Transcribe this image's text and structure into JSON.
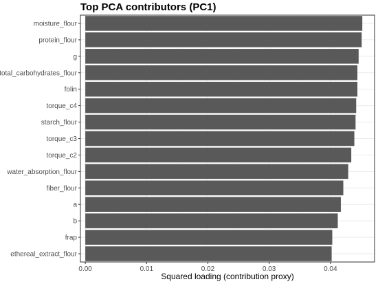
{
  "colors": {
    "bar": "#595959",
    "panel_border": "#333333",
    "grid": "#ebebeb",
    "background": "#ffffff"
  },
  "chart_data": {
    "type": "bar",
    "orientation": "horizontal",
    "title": "Top PCA contributors (PC1)",
    "xlabel": "Squared loading (contribution proxy)",
    "ylabel": "",
    "xlim": [
      -0.0008,
      0.0472
    ],
    "xticks": [
      0.0,
      0.01,
      0.02,
      0.03,
      0.04
    ],
    "xtick_labels": [
      "0.00",
      "0.01",
      "0.02",
      "0.03",
      "0.04"
    ],
    "grid": true,
    "categories": [
      "moisture_flour",
      "protein_flour",
      "g",
      "total_carbohydrates_flour",
      "folin",
      "torque_c4",
      "starch_flour",
      "torque_c3",
      "torque_c2",
      "water_absorption_flour",
      "fiber_flour",
      "a",
      "b",
      "frap",
      "ethereal_extract_flour"
    ],
    "values": [
      0.0452,
      0.0451,
      0.0446,
      0.0444,
      0.0444,
      0.0442,
      0.0441,
      0.0439,
      0.0434,
      0.0429,
      0.0421,
      0.0417,
      0.0412,
      0.0403,
      0.0402
    ]
  }
}
